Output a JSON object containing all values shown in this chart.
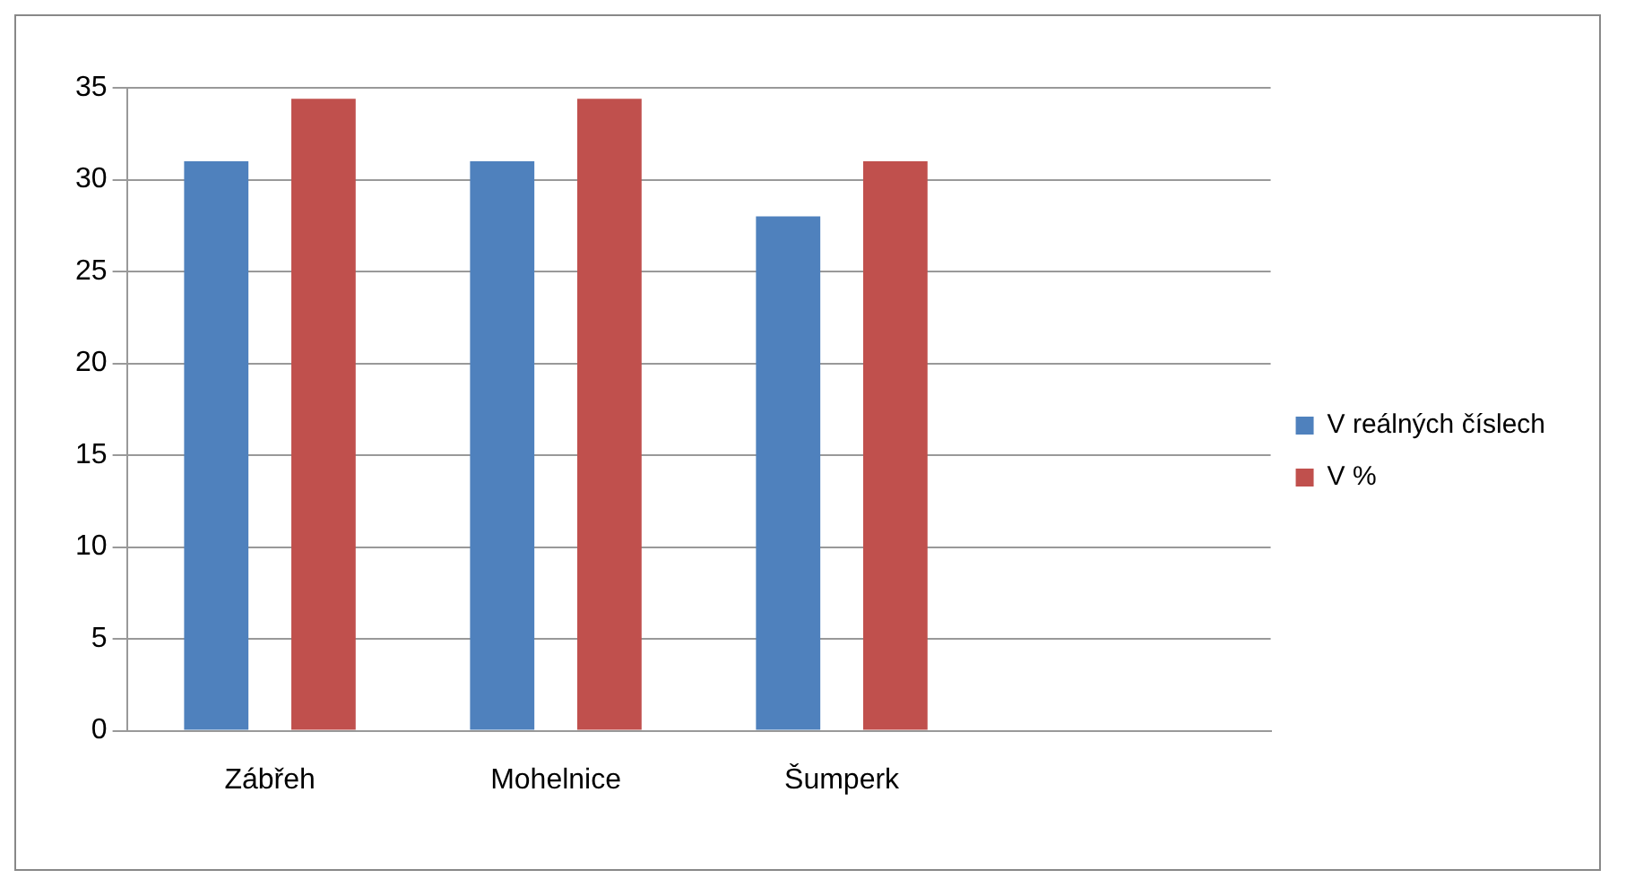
{
  "chart_data": {
    "type": "bar",
    "categories": [
      "Zábřeh",
      "Mohelnice",
      "Šumperk",
      null
    ],
    "series": [
      {
        "name": "V reálných číslech",
        "color": "#4f81bd",
        "values": [
          31,
          31,
          28,
          null
        ]
      },
      {
        "name": "V %",
        "color": "#c0504d",
        "values": [
          34.4,
          34.4,
          31,
          null
        ]
      }
    ],
    "ylim": [
      0,
      35
    ],
    "yticks": [
      0,
      5,
      10,
      15,
      20,
      25,
      30,
      35
    ],
    "grid": "y",
    "legend": "right"
  }
}
